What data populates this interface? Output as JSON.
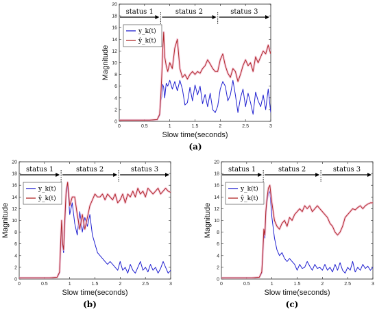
{
  "chart_data": [
    {
      "id": "a",
      "type": "line",
      "caption": "(a)",
      "xlabel": "Slow time(seconds)",
      "ylabel": "Magnitude",
      "xlim": [
        0,
        3
      ],
      "ylim": [
        0,
        20
      ],
      "xticks": [
        "0",
        "0.5",
        "1",
        "1.5",
        "2",
        "2.5",
        "3"
      ],
      "yticks": [
        "0",
        "2",
        "4",
        "6",
        "8",
        "10",
        "12",
        "14",
        "16",
        "18",
        "20"
      ],
      "legend_position": "top-left",
      "status_labels": [
        "status 1",
        "status 2",
        "status 3"
      ],
      "status_boundaries": [
        0.82,
        1.95
      ],
      "series": [
        {
          "name": "y_k(t)",
          "color": "#1f1fd0",
          "x": [
            0,
            0.2,
            0.4,
            0.6,
            0.75,
            0.8,
            0.82,
            0.84,
            0.86,
            0.88,
            0.9,
            0.93,
            0.96,
            1.0,
            1.05,
            1.1,
            1.15,
            1.2,
            1.25,
            1.3,
            1.35,
            1.4,
            1.45,
            1.5,
            1.55,
            1.6,
            1.65,
            1.7,
            1.75,
            1.8,
            1.85,
            1.9,
            1.95,
            2.0,
            2.05,
            2.1,
            2.15,
            2.2,
            2.25,
            2.3,
            2.35,
            2.4,
            2.45,
            2.5,
            2.55,
            2.6,
            2.65,
            2.7,
            2.75,
            2.8,
            2.85,
            2.9,
            2.95,
            3.0
          ],
          "y": [
            0.2,
            0.2,
            0.2,
            0.2,
            0.3,
            1.0,
            3.5,
            4.2,
            6.3,
            5.8,
            4.0,
            6.5,
            6.0,
            7.0,
            5.5,
            6.8,
            5.2,
            7.0,
            5.5,
            2.8,
            3.2,
            5.8,
            3.5,
            6.2,
            4.5,
            6.0,
            3.0,
            4.6,
            2.5,
            4.8,
            2.0,
            1.5,
            2.6,
            5.5,
            6.8,
            6.0,
            3.5,
            4.5,
            7.0,
            4.5,
            1.5,
            4.0,
            5.5,
            2.5,
            4.8,
            3.2,
            1.2,
            5.0,
            3.5,
            2.5,
            4.5,
            2.0,
            5.5,
            1.5
          ]
        },
        {
          "name": "ŷ_k(t)",
          "color": "#b0282a",
          "x": [
            0,
            0.2,
            0.4,
            0.6,
            0.75,
            0.8,
            0.82,
            0.84,
            0.86,
            0.88,
            0.9,
            0.93,
            0.96,
            1.0,
            1.05,
            1.1,
            1.15,
            1.2,
            1.25,
            1.3,
            1.35,
            1.4,
            1.45,
            1.5,
            1.55,
            1.6,
            1.65,
            1.7,
            1.75,
            1.8,
            1.85,
            1.9,
            1.95,
            2.0,
            2.05,
            2.1,
            2.15,
            2.2,
            2.25,
            2.3,
            2.35,
            2.4,
            2.45,
            2.5,
            2.55,
            2.6,
            2.65,
            2.7,
            2.75,
            2.8,
            2.85,
            2.9,
            2.95,
            3.0
          ],
          "y": [
            0.2,
            0.2,
            0.2,
            0.2,
            0.3,
            1.2,
            4.0,
            7.5,
            12.0,
            15.2,
            11.0,
            9.5,
            8.5,
            10.0,
            9.0,
            12.5,
            14.0,
            9.0,
            7.5,
            8.0,
            7.2,
            8.0,
            8.5,
            8.0,
            8.5,
            8.2,
            9.0,
            9.5,
            10.5,
            9.8,
            9.0,
            8.5,
            8.5,
            10.5,
            11.5,
            9.5,
            8.2,
            7.5,
            9.0,
            8.5,
            6.8,
            8.0,
            9.5,
            10.5,
            9.5,
            10.0,
            8.5,
            11.0,
            10.0,
            11.0,
            12.0,
            11.5,
            13.0,
            11.5
          ]
        }
      ]
    },
    {
      "id": "b",
      "type": "line",
      "caption": "(b)",
      "xlabel": "Slow time(seconds)",
      "ylabel": "Magnitude",
      "xlim": [
        0,
        3
      ],
      "ylim": [
        0,
        20
      ],
      "xticks": [
        "0",
        "0.5",
        "1",
        "1.5",
        "2",
        "2.5",
        "3"
      ],
      "yticks": [
        "0",
        "2",
        "4",
        "6",
        "8",
        "10",
        "12",
        "14",
        "16",
        "18",
        "20"
      ],
      "legend_position": "top-left",
      "status_labels": [
        "status 1",
        "status 2",
        "status 3"
      ],
      "status_boundaries": [
        0.83,
        1.97
      ],
      "series": [
        {
          "name": "y_k(t)",
          "color": "#1f1fd0",
          "x": [
            0,
            0.2,
            0.4,
            0.6,
            0.75,
            0.8,
            0.82,
            0.84,
            0.86,
            0.88,
            0.9,
            0.93,
            0.96,
            1.0,
            1.05,
            1.1,
            1.15,
            1.2,
            1.25,
            1.3,
            1.35,
            1.4,
            1.45,
            1.5,
            1.55,
            1.6,
            1.65,
            1.7,
            1.75,
            1.8,
            1.85,
            1.9,
            1.95,
            2.0,
            2.05,
            2.1,
            2.15,
            2.2,
            2.25,
            2.3,
            2.35,
            2.4,
            2.45,
            2.5,
            2.55,
            2.6,
            2.65,
            2.7,
            2.75,
            2.8,
            2.85,
            2.9,
            2.95,
            3.0
          ],
          "y": [
            0.2,
            0.2,
            0.2,
            0.2,
            0.3,
            1.0,
            5.0,
            10.0,
            5.5,
            4.5,
            8.5,
            14.5,
            16.0,
            11.0,
            13.0,
            9.5,
            7.5,
            11.5,
            8.0,
            10.5,
            9.0,
            11.0,
            7.5,
            6.0,
            4.5,
            4.0,
            3.5,
            3.0,
            2.5,
            3.0,
            2.5,
            2.0,
            1.5,
            3.0,
            1.5,
            2.0,
            1.0,
            2.5,
            1.5,
            1.0,
            2.0,
            3.0,
            1.5,
            2.0,
            1.2,
            2.5,
            1.5,
            2.0,
            1.0,
            1.8,
            3.0,
            2.0,
            1.0,
            1.5
          ]
        },
        {
          "name": "ŷ_k(t)",
          "color": "#b0282a",
          "x": [
            0,
            0.2,
            0.4,
            0.6,
            0.75,
            0.8,
            0.82,
            0.84,
            0.86,
            0.88,
            0.9,
            0.93,
            0.96,
            1.0,
            1.05,
            1.1,
            1.15,
            1.2,
            1.25,
            1.3,
            1.35,
            1.4,
            1.45,
            1.5,
            1.55,
            1.6,
            1.65,
            1.7,
            1.75,
            1.8,
            1.85,
            1.9,
            1.95,
            2.0,
            2.05,
            2.1,
            2.15,
            2.2,
            2.25,
            2.3,
            2.35,
            2.4,
            2.45,
            2.5,
            2.55,
            2.6,
            2.65,
            2.7,
            2.75,
            2.8,
            2.85,
            2.9,
            2.95,
            3.0
          ],
          "y": [
            0.2,
            0.2,
            0.2,
            0.2,
            0.3,
            1.2,
            6.0,
            10.0,
            6.0,
            5.0,
            9.5,
            15.0,
            16.5,
            12.5,
            14.0,
            14.0,
            11.0,
            8.5,
            11.0,
            8.5,
            10.5,
            12.5,
            13.5,
            14.5,
            14.0,
            14.0,
            14.5,
            13.5,
            14.5,
            14.0,
            13.5,
            14.5,
            13.0,
            13.5,
            14.5,
            13.0,
            14.5,
            14.0,
            15.0,
            14.0,
            15.5,
            14.5,
            15.0,
            14.0,
            15.5,
            15.0,
            14.5,
            15.0,
            15.5,
            14.5,
            15.0,
            15.5,
            15.0,
            14.8
          ]
        }
      ]
    },
    {
      "id": "c",
      "type": "line",
      "caption": "(c)",
      "xlabel": "Slow time(seconds)",
      "ylabel": "Magnitude",
      "xlim": [
        0,
        3
      ],
      "ylim": [
        0,
        20
      ],
      "xticks": [
        "0",
        "0.5",
        "1",
        "1.5",
        "2",
        "2.5",
        "3"
      ],
      "yticks": [
        "0",
        "2",
        "4",
        "6",
        "8",
        "10",
        "12",
        "14",
        "16",
        "18",
        "20"
      ],
      "legend_position": "top-left",
      "status_labels": [
        "status 1",
        "status 2",
        "status 3"
      ],
      "status_boundaries": [
        0.83,
        1.97
      ],
      "series": [
        {
          "name": "y_k(t)",
          "color": "#1f1fd0",
          "x": [
            0,
            0.2,
            0.4,
            0.6,
            0.75,
            0.8,
            0.82,
            0.84,
            0.86,
            0.88,
            0.9,
            0.93,
            0.96,
            1.0,
            1.05,
            1.1,
            1.15,
            1.2,
            1.25,
            1.3,
            1.35,
            1.4,
            1.45,
            1.5,
            1.55,
            1.6,
            1.65,
            1.7,
            1.75,
            1.8,
            1.85,
            1.9,
            1.95,
            2.0,
            2.05,
            2.1,
            2.15,
            2.2,
            2.25,
            2.3,
            2.35,
            2.4,
            2.45,
            2.5,
            2.55,
            2.6,
            2.65,
            2.7,
            2.75,
            2.8,
            2.85,
            2.9,
            2.95,
            3.0
          ],
          "y": [
            0.2,
            0.2,
            0.2,
            0.2,
            0.3,
            1.0,
            4.0,
            8.0,
            7.0,
            11.0,
            13.0,
            14.5,
            15.0,
            10.5,
            7.0,
            5.0,
            4.0,
            4.5,
            3.5,
            3.0,
            3.5,
            3.0,
            2.5,
            1.5,
            2.5,
            1.8,
            2.0,
            3.0,
            2.2,
            1.5,
            2.5,
            1.8,
            2.0,
            1.5,
            2.5,
            1.5,
            2.0,
            1.2,
            2.5,
            1.5,
            2.8,
            1.5,
            1.0,
            2.0,
            1.5,
            3.0,
            1.2,
            2.0,
            1.5,
            2.5,
            1.8,
            2.2,
            1.5,
            2.0
          ]
        },
        {
          "name": "ŷ_k(t)",
          "color": "#b0282a",
          "x": [
            0,
            0.2,
            0.4,
            0.6,
            0.75,
            0.8,
            0.82,
            0.84,
            0.86,
            0.88,
            0.9,
            0.93,
            0.96,
            1.0,
            1.05,
            1.1,
            1.15,
            1.2,
            1.25,
            1.3,
            1.35,
            1.4,
            1.45,
            1.5,
            1.55,
            1.6,
            1.65,
            1.7,
            1.75,
            1.8,
            1.85,
            1.9,
            1.95,
            2.0,
            2.05,
            2.1,
            2.15,
            2.2,
            2.25,
            2.3,
            2.35,
            2.4,
            2.45,
            2.5,
            2.55,
            2.6,
            2.65,
            2.7,
            2.75,
            2.8,
            2.85,
            2.9,
            2.95,
            3.0
          ],
          "y": [
            0.2,
            0.2,
            0.2,
            0.2,
            0.3,
            1.2,
            4.5,
            8.5,
            7.5,
            11.5,
            13.5,
            15.5,
            16.0,
            13.0,
            10.0,
            9.0,
            8.5,
            9.5,
            10.0,
            9.0,
            10.5,
            10.0,
            11.0,
            11.5,
            12.0,
            11.5,
            12.5,
            12.0,
            12.5,
            11.5,
            12.0,
            12.5,
            12.0,
            11.5,
            11.0,
            10.5,
            9.5,
            9.0,
            8.0,
            7.5,
            8.0,
            9.0,
            10.5,
            11.0,
            11.5,
            12.0,
            11.8,
            12.2,
            12.5,
            12.0,
            12.5,
            12.8,
            13.0,
            13.0
          ]
        }
      ]
    }
  ]
}
